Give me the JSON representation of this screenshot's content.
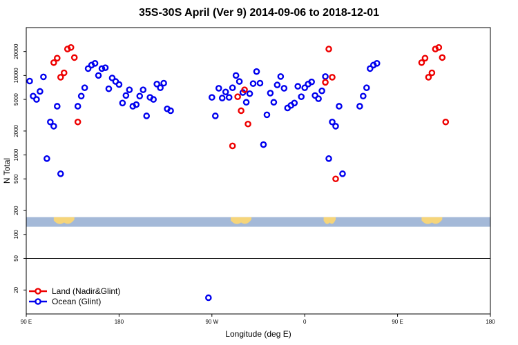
{
  "chart_data": {
    "type": "scatter",
    "title": "35S-30S April (Ver 9)   2014-09-06 to 2018-12-01",
    "xlabel": "Longitude (deg E)",
    "ylabel": "N Total",
    "y_scale": "log",
    "xlim": [
      -90,
      180
    ],
    "ylim": [
      10,
      40000
    ],
    "x_axis_note": "longitude shown as continuous degrees with wrap: 90E at left, 180, 90W, 0, 90E, 180 at right",
    "x_ticks": [
      {
        "value": -90,
        "label": "90 E"
      },
      {
        "value": -36,
        "label": "180"
      },
      {
        "value": 18,
        "label": "90 W"
      },
      {
        "value": 72,
        "label": "0"
      },
      {
        "value": 126,
        "label": "90 E"
      },
      {
        "value": 180,
        "label": "180"
      }
    ],
    "y_ticks": [
      {
        "value": 20,
        "label": "20"
      },
      {
        "value": 50,
        "label": "50"
      },
      {
        "value": 100,
        "label": "100"
      },
      {
        "value": 200,
        "label": "200"
      },
      {
        "value": 500,
        "label": "500"
      },
      {
        "value": 1000,
        "label": "1000"
      },
      {
        "value": 2000,
        "label": "2000"
      },
      {
        "value": 5000,
        "label": "5000"
      },
      {
        "value": 10000,
        "label": "10000"
      },
      {
        "value": 20000,
        "label": "20000"
      }
    ],
    "reference_lines": [
      50
    ],
    "land_strip": {
      "y_range": [
        125,
        165
      ],
      "ocean_color": "#a4b9d8",
      "land_color": "#f6d57a",
      "land_x_ranges": [
        [
          -74,
          -62
        ],
        [
          29,
          41
        ],
        [
          83,
          90
        ],
        [
          140,
          152
        ]
      ]
    },
    "legend_position": "bottom-left",
    "series": [
      {
        "name": "Land (Nadir&Glint)",
        "color": "#ee0000",
        "points": [
          [
            -74,
            14500
          ],
          [
            -72,
            16500
          ],
          [
            -70,
            9500
          ],
          [
            -68,
            10800
          ],
          [
            -66,
            21500
          ],
          [
            -64,
            22500
          ],
          [
            -62,
            16800
          ],
          [
            -60,
            2600
          ],
          [
            30,
            1300
          ],
          [
            33,
            5400
          ],
          [
            35,
            3600
          ],
          [
            37,
            6600
          ],
          [
            39,
            2450
          ],
          [
            84,
            8200
          ],
          [
            86,
            21500
          ],
          [
            88,
            9500
          ],
          [
            90,
            500
          ],
          [
            140,
            14500
          ],
          [
            142,
            16500
          ],
          [
            144,
            9500
          ],
          [
            146,
            10800
          ],
          [
            148,
            21500
          ],
          [
            150,
            22500
          ],
          [
            152,
            16800
          ],
          [
            154,
            2600
          ]
        ]
      },
      {
        "name": "Ocean (Glint)",
        "color": "#0000ee",
        "points": [
          [
            -88,
            8500
          ],
          [
            -86,
            5500
          ],
          [
            -84,
            5000
          ],
          [
            -82,
            6300
          ],
          [
            -80,
            9600
          ],
          [
            -78,
            900
          ],
          [
            -76,
            2600
          ],
          [
            -74,
            2300
          ],
          [
            -72,
            4100
          ],
          [
            -70,
            580
          ],
          [
            -60,
            4100
          ],
          [
            -58,
            5500
          ],
          [
            -56,
            7000
          ],
          [
            -54,
            12200
          ],
          [
            -52,
            13500
          ],
          [
            -50,
            14200
          ],
          [
            -48,
            10000
          ],
          [
            -46,
            12200
          ],
          [
            -44,
            12500
          ],
          [
            -42,
            6800
          ],
          [
            -40,
            9300
          ],
          [
            -38,
            8400
          ],
          [
            -36,
            7700
          ],
          [
            -34,
            4500
          ],
          [
            -32,
            5600
          ],
          [
            -30,
            6600
          ],
          [
            -28,
            4100
          ],
          [
            -26,
            4300
          ],
          [
            -24,
            5500
          ],
          [
            -22,
            6600
          ],
          [
            -20,
            3100
          ],
          [
            -18,
            5300
          ],
          [
            -16,
            5000
          ],
          [
            -14,
            7800
          ],
          [
            -12,
            7000
          ],
          [
            -10,
            8000
          ],
          [
            -8,
            3800
          ],
          [
            -6,
            3600
          ],
          [
            16,
            16
          ],
          [
            18,
            5300
          ],
          [
            20,
            3100
          ],
          [
            22,
            6900
          ],
          [
            24,
            5200
          ],
          [
            26,
            6200
          ],
          [
            28,
            5300
          ],
          [
            30,
            7000
          ],
          [
            32,
            10000
          ],
          [
            34,
            8400
          ],
          [
            36,
            6100
          ],
          [
            38,
            4600
          ],
          [
            40,
            5900
          ],
          [
            42,
            7900
          ],
          [
            44,
            11200
          ],
          [
            46,
            8000
          ],
          [
            48,
            1350
          ],
          [
            50,
            3200
          ],
          [
            52,
            6000
          ],
          [
            54,
            4600
          ],
          [
            56,
            7600
          ],
          [
            58,
            9700
          ],
          [
            60,
            6900
          ],
          [
            62,
            3900
          ],
          [
            64,
            4200
          ],
          [
            66,
            4500
          ],
          [
            68,
            7300
          ],
          [
            70,
            5400
          ],
          [
            72,
            7000
          ],
          [
            74,
            7800
          ],
          [
            76,
            8300
          ],
          [
            78,
            5600
          ],
          [
            80,
            5100
          ],
          [
            82,
            6400
          ],
          [
            84,
            9700
          ],
          [
            86,
            900
          ],
          [
            88,
            2600
          ],
          [
            90,
            2300
          ],
          [
            92,
            4100
          ],
          [
            94,
            580
          ],
          [
            104,
            4100
          ],
          [
            106,
            5500
          ],
          [
            108,
            7000
          ],
          [
            110,
            12200
          ],
          [
            112,
            13500
          ],
          [
            114,
            14200
          ]
        ]
      }
    ]
  }
}
